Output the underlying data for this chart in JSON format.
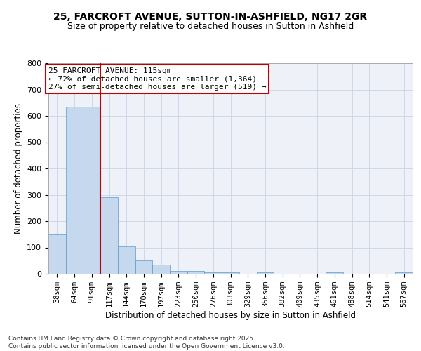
{
  "title1": "25, FARCROFT AVENUE, SUTTON-IN-ASHFIELD, NG17 2GR",
  "title2": "Size of property relative to detached houses in Sutton in Ashfield",
  "xlabel": "Distribution of detached houses by size in Sutton in Ashfield",
  "ylabel": "Number of detached properties",
  "categories": [
    "38sqm",
    "64sqm",
    "91sqm",
    "117sqm",
    "144sqm",
    "170sqm",
    "197sqm",
    "223sqm",
    "250sqm",
    "276sqm",
    "303sqm",
    "329sqm",
    "356sqm",
    "382sqm",
    "409sqm",
    "435sqm",
    "461sqm",
    "488sqm",
    "514sqm",
    "541sqm",
    "567sqm"
  ],
  "values": [
    150,
    635,
    635,
    290,
    105,
    50,
    35,
    10,
    10,
    5,
    5,
    0,
    5,
    0,
    0,
    0,
    5,
    0,
    0,
    0,
    5
  ],
  "bar_color": "#c5d8ed",
  "bar_edge_color": "#5a9ac9",
  "vline_color": "#c00000",
  "annotation_text": "25 FARCROFT AVENUE: 115sqm\n← 72% of detached houses are smaller (1,364)\n27% of semi-detached houses are larger (519) →",
  "annotation_box_color": "#c00000",
  "bg_color": "#eef2f8",
  "grid_color": "#c8d4e8",
  "footer": "Contains HM Land Registry data © Crown copyright and database right 2025.\nContains public sector information licensed under the Open Government Licence v3.0.",
  "ylim": [
    0,
    800
  ],
  "yticks": [
    0,
    100,
    200,
    300,
    400,
    500,
    600,
    700,
    800
  ]
}
